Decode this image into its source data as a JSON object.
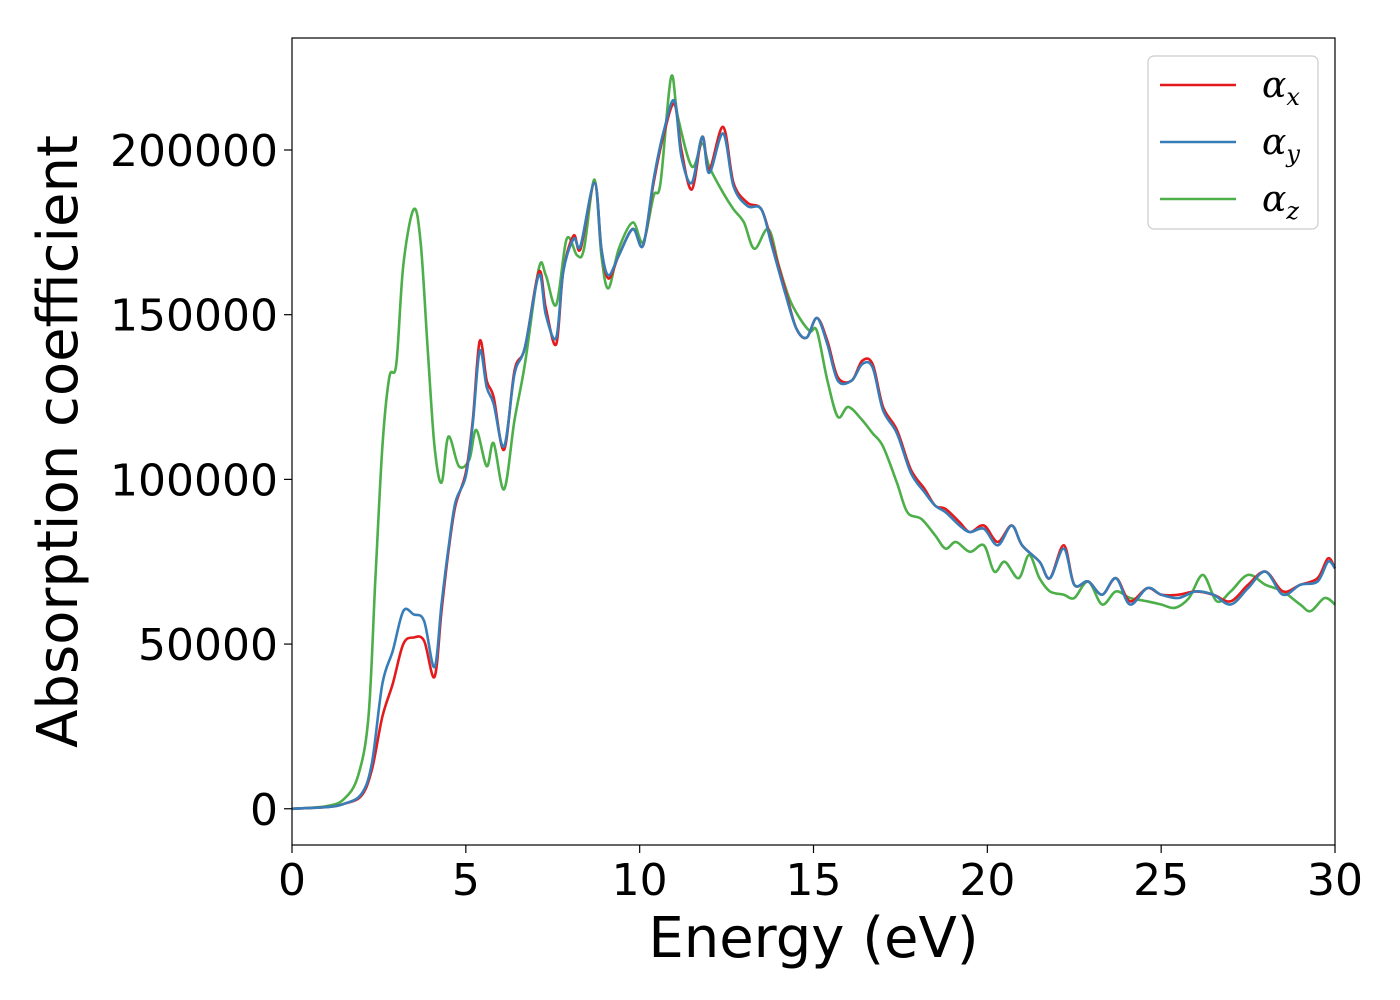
{
  "chart_data": {
    "type": "line",
    "xlabel": "Energy (eV)",
    "ylabel": "Absorption coefficient",
    "xlim": [
      0,
      30
    ],
    "ylim": [
      -11000,
      234000
    ],
    "xticks": [
      0,
      5,
      10,
      15,
      20,
      25,
      30
    ],
    "yticks": [
      0,
      50000,
      100000,
      150000,
      200000
    ],
    "grid": false,
    "legend_position": "top-right",
    "series": [
      {
        "name": "α_x",
        "legend_symbol": "α",
        "legend_subscript": "x",
        "color": "#e41a1c",
        "points": [
          [
            0,
            0
          ],
          [
            1.0,
            500
          ],
          [
            1.5,
            1500
          ],
          [
            2.0,
            4000
          ],
          [
            2.3,
            12000
          ],
          [
            2.6,
            28000
          ],
          [
            2.9,
            38000
          ],
          [
            3.2,
            50000
          ],
          [
            3.5,
            52000
          ],
          [
            3.8,
            51000
          ],
          [
            4.1,
            40000
          ],
          [
            4.3,
            60000
          ],
          [
            4.5,
            78000
          ],
          [
            4.7,
            92000
          ],
          [
            5.0,
            102000
          ],
          [
            5.2,
            118000
          ],
          [
            5.4,
            142000
          ],
          [
            5.6,
            130000
          ],
          [
            5.8,
            125000
          ],
          [
            6.1,
            109000
          ],
          [
            6.4,
            133000
          ],
          [
            6.7,
            140000
          ],
          [
            7.1,
            163000
          ],
          [
            7.3,
            152000
          ],
          [
            7.6,
            141000
          ],
          [
            7.8,
            163000
          ],
          [
            8.1,
            174000
          ],
          [
            8.3,
            170000
          ],
          [
            8.7,
            190000
          ],
          [
            8.9,
            170000
          ],
          [
            9.1,
            161000
          ],
          [
            9.4,
            168000
          ],
          [
            9.8,
            176000
          ],
          [
            10.1,
            171000
          ],
          [
            10.4,
            190000
          ],
          [
            10.7,
            205000
          ],
          [
            11.0,
            214000
          ],
          [
            11.2,
            200000
          ],
          [
            11.5,
            188000
          ],
          [
            11.8,
            204000
          ],
          [
            12.0,
            194000
          ],
          [
            12.4,
            207000
          ],
          [
            12.7,
            190000
          ],
          [
            13.1,
            184000
          ],
          [
            13.5,
            182000
          ],
          [
            13.8,
            172000
          ],
          [
            14.2,
            157000
          ],
          [
            14.5,
            146000
          ],
          [
            14.8,
            143000
          ],
          [
            15.1,
            149000
          ],
          [
            15.4,
            142000
          ],
          [
            15.7,
            131000
          ],
          [
            16.1,
            130000
          ],
          [
            16.4,
            136000
          ],
          [
            16.7,
            135000
          ],
          [
            17.0,
            122000
          ],
          [
            17.4,
            115000
          ],
          [
            17.8,
            103000
          ],
          [
            18.2,
            97000
          ],
          [
            18.5,
            92000
          ],
          [
            18.8,
            91000
          ],
          [
            19.2,
            87000
          ],
          [
            19.5,
            84000
          ],
          [
            19.9,
            86000
          ],
          [
            20.3,
            81000
          ],
          [
            20.7,
            86000
          ],
          [
            21.0,
            80000
          ],
          [
            21.5,
            75000
          ],
          [
            21.8,
            70000
          ],
          [
            22.2,
            80000
          ],
          [
            22.5,
            68000
          ],
          [
            22.9,
            69000
          ],
          [
            23.3,
            65000
          ],
          [
            23.7,
            70000
          ],
          [
            24.1,
            63000
          ],
          [
            24.6,
            67000
          ],
          [
            25.0,
            65000
          ],
          [
            25.5,
            65000
          ],
          [
            26.0,
            66000
          ],
          [
            26.5,
            65000
          ],
          [
            27.0,
            63000
          ],
          [
            27.5,
            68000
          ],
          [
            28.0,
            72000
          ],
          [
            28.5,
            66000
          ],
          [
            29.0,
            68000
          ],
          [
            29.5,
            70000
          ],
          [
            29.8,
            76000
          ],
          [
            30.0,
            73000
          ]
        ]
      },
      {
        "name": "α_y",
        "legend_symbol": "α",
        "legend_subscript": "y",
        "color": "#377eb8",
        "points": [
          [
            0,
            0
          ],
          [
            1.0,
            500
          ],
          [
            1.5,
            1500
          ],
          [
            2.0,
            4500
          ],
          [
            2.3,
            14000
          ],
          [
            2.6,
            38000
          ],
          [
            2.9,
            48000
          ],
          [
            3.2,
            60000
          ],
          [
            3.5,
            59000
          ],
          [
            3.8,
            57000
          ],
          [
            4.1,
            43000
          ],
          [
            4.3,
            62000
          ],
          [
            4.5,
            79000
          ],
          [
            4.7,
            93000
          ],
          [
            5.0,
            101000
          ],
          [
            5.2,
            117000
          ],
          [
            5.4,
            139000
          ],
          [
            5.6,
            128000
          ],
          [
            5.8,
            123000
          ],
          [
            6.1,
            110000
          ],
          [
            6.4,
            132000
          ],
          [
            6.7,
            140000
          ],
          [
            7.1,
            162000
          ],
          [
            7.3,
            150000
          ],
          [
            7.6,
            143000
          ],
          [
            7.8,
            163000
          ],
          [
            8.1,
            173000
          ],
          [
            8.3,
            171000
          ],
          [
            8.7,
            190000
          ],
          [
            8.9,
            170000
          ],
          [
            9.1,
            162000
          ],
          [
            9.4,
            168000
          ],
          [
            9.8,
            176000
          ],
          [
            10.1,
            171000
          ],
          [
            10.4,
            191000
          ],
          [
            10.7,
            206000
          ],
          [
            11.0,
            215000
          ],
          [
            11.2,
            198000
          ],
          [
            11.5,
            190000
          ],
          [
            11.8,
            204000
          ],
          [
            12.0,
            193000
          ],
          [
            12.4,
            205000
          ],
          [
            12.7,
            189000
          ],
          [
            13.1,
            183000
          ],
          [
            13.5,
            182000
          ],
          [
            13.8,
            171000
          ],
          [
            14.2,
            156000
          ],
          [
            14.5,
            146000
          ],
          [
            14.8,
            143000
          ],
          [
            15.1,
            149000
          ],
          [
            15.4,
            141000
          ],
          [
            15.7,
            130000
          ],
          [
            16.1,
            130000
          ],
          [
            16.4,
            135000
          ],
          [
            16.7,
            134000
          ],
          [
            17.0,
            121000
          ],
          [
            17.4,
            114000
          ],
          [
            17.8,
            102000
          ],
          [
            18.2,
            96000
          ],
          [
            18.5,
            92000
          ],
          [
            18.8,
            90000
          ],
          [
            19.2,
            86000
          ],
          [
            19.5,
            84000
          ],
          [
            19.9,
            85000
          ],
          [
            20.3,
            80000
          ],
          [
            20.7,
            86000
          ],
          [
            21.0,
            80000
          ],
          [
            21.5,
            75000
          ],
          [
            21.8,
            70000
          ],
          [
            22.2,
            79000
          ],
          [
            22.5,
            68000
          ],
          [
            22.9,
            69000
          ],
          [
            23.3,
            65000
          ],
          [
            23.7,
            70000
          ],
          [
            24.1,
            62000
          ],
          [
            24.6,
            67000
          ],
          [
            25.0,
            65000
          ],
          [
            25.5,
            64000
          ],
          [
            26.0,
            66000
          ],
          [
            26.5,
            65000
          ],
          [
            27.0,
            62000
          ],
          [
            27.5,
            67000
          ],
          [
            28.0,
            72000
          ],
          [
            28.5,
            65000
          ],
          [
            29.0,
            68000
          ],
          [
            29.5,
            69000
          ],
          [
            29.8,
            75000
          ],
          [
            30.0,
            73000
          ]
        ]
      },
      {
        "name": "α_z",
        "legend_symbol": "α",
        "legend_subscript": "z",
        "color": "#4daf4a",
        "points": [
          [
            0,
            0
          ],
          [
            1.0,
            800
          ],
          [
            1.5,
            3000
          ],
          [
            1.9,
            10000
          ],
          [
            2.2,
            28000
          ],
          [
            2.4,
            70000
          ],
          [
            2.6,
            110000
          ],
          [
            2.8,
            131000
          ],
          [
            3.0,
            135000
          ],
          [
            3.2,
            165000
          ],
          [
            3.5,
            182000
          ],
          [
            3.7,
            172000
          ],
          [
            3.9,
            140000
          ],
          [
            4.1,
            110000
          ],
          [
            4.3,
            99000
          ],
          [
            4.5,
            113000
          ],
          [
            4.8,
            104000
          ],
          [
            5.1,
            106000
          ],
          [
            5.3,
            115000
          ],
          [
            5.6,
            104000
          ],
          [
            5.8,
            111000
          ],
          [
            6.1,
            97000
          ],
          [
            6.4,
            118000
          ],
          [
            6.7,
            135000
          ],
          [
            7.1,
            164000
          ],
          [
            7.3,
            162000
          ],
          [
            7.6,
            153000
          ],
          [
            7.9,
            173000
          ],
          [
            8.2,
            168000
          ],
          [
            8.4,
            170000
          ],
          [
            8.7,
            191000
          ],
          [
            8.9,
            168000
          ],
          [
            9.1,
            158000
          ],
          [
            9.4,
            170000
          ],
          [
            9.8,
            178000
          ],
          [
            10.1,
            172000
          ],
          [
            10.4,
            186000
          ],
          [
            10.6,
            190000
          ],
          [
            10.9,
            222000
          ],
          [
            11.1,
            210000
          ],
          [
            11.5,
            195000
          ],
          [
            11.8,
            202000
          ],
          [
            12.0,
            195000
          ],
          [
            12.4,
            187000
          ],
          [
            12.7,
            182000
          ],
          [
            13.0,
            178000
          ],
          [
            13.3,
            170000
          ],
          [
            13.7,
            176000
          ],
          [
            14.0,
            165000
          ],
          [
            14.3,
            155000
          ],
          [
            14.6,
            149000
          ],
          [
            14.9,
            145000
          ],
          [
            15.1,
            145000
          ],
          [
            15.4,
            130000
          ],
          [
            15.7,
            119000
          ],
          [
            16.0,
            122000
          ],
          [
            16.4,
            118000
          ],
          [
            16.7,
            114000
          ],
          [
            17.0,
            110000
          ],
          [
            17.4,
            99000
          ],
          [
            17.7,
            90000
          ],
          [
            18.1,
            88000
          ],
          [
            18.5,
            83000
          ],
          [
            18.8,
            79000
          ],
          [
            19.1,
            81000
          ],
          [
            19.5,
            78000
          ],
          [
            19.9,
            80000
          ],
          [
            20.2,
            72000
          ],
          [
            20.5,
            75000
          ],
          [
            20.9,
            70000
          ],
          [
            21.2,
            77000
          ],
          [
            21.5,
            70000
          ],
          [
            21.8,
            66000
          ],
          [
            22.2,
            65000
          ],
          [
            22.5,
            64000
          ],
          [
            22.9,
            69000
          ],
          [
            23.3,
            62000
          ],
          [
            23.7,
            66000
          ],
          [
            24.1,
            64000
          ],
          [
            24.6,
            63000
          ],
          [
            25.0,
            62000
          ],
          [
            25.4,
            61000
          ],
          [
            25.8,
            64000
          ],
          [
            26.2,
            71000
          ],
          [
            26.6,
            63000
          ],
          [
            27.0,
            66000
          ],
          [
            27.5,
            71000
          ],
          [
            28.0,
            68000
          ],
          [
            28.5,
            66000
          ],
          [
            29.0,
            62000
          ],
          [
            29.3,
            60000
          ],
          [
            29.7,
            64000
          ],
          [
            30.0,
            62000
          ]
        ]
      }
    ]
  }
}
